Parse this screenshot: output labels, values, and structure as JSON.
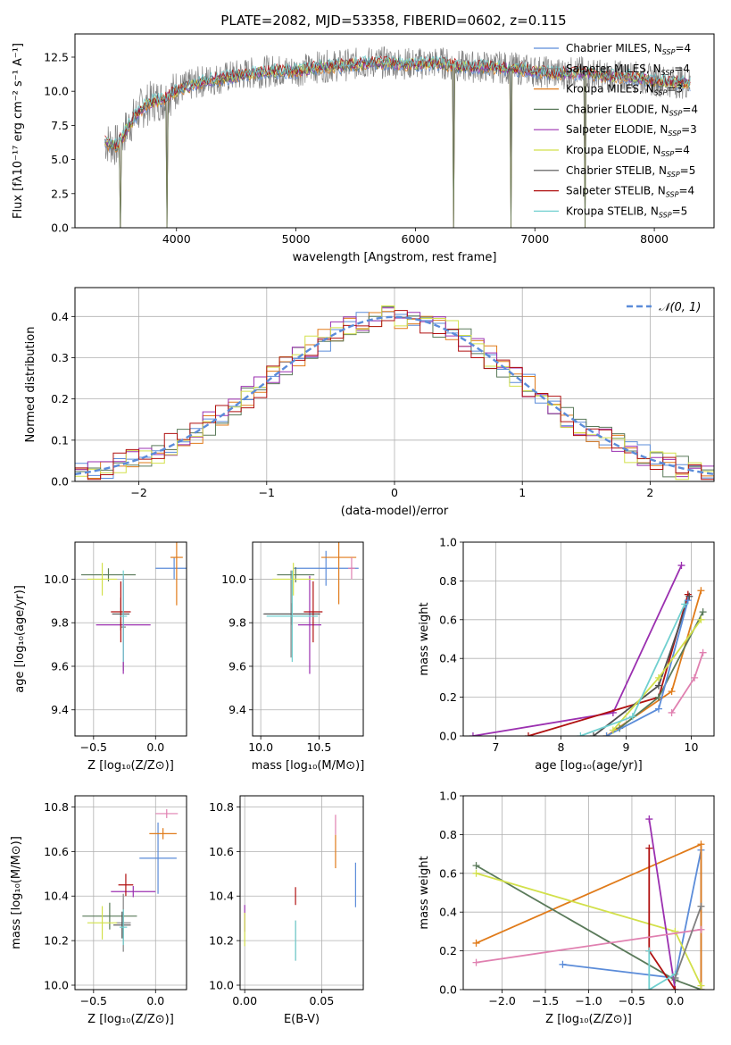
{
  "figure_title": "PLATE=2082, MJD=53358, FIBERID=0602, z=0.115",
  "colors": {
    "chabrier_miles": "#5b8cd9",
    "salpeter_miles": "#808080",
    "kroupa_miles": "#e07b1a",
    "chabrier_elodie": "#5a7a5a",
    "salpeter_elodie": "#9b30b0",
    "kroupa_elodie": "#d2e04a",
    "chabrier_stelib": "#505050",
    "salpeter_stelib": "#b01010",
    "kroupa_stelib": "#70d0d0",
    "pink": "#e080b0",
    "gaussian": "#5b8cd9"
  },
  "chart_data": [
    {
      "type": "line",
      "id": "spectrum",
      "xlabel": "wavelength [Angstrom, rest frame]",
      "ylabel": "Flux [fλ10⁻¹⁷ erg cm⁻² s⁻¹ A⁻¹]",
      "xlim": [
        3150,
        8500
      ],
      "ylim": [
        0,
        14.2
      ],
      "xticks": [
        4000,
        5000,
        6000,
        7000,
        8000
      ],
      "yticks": [
        0.0,
        2.5,
        5.0,
        7.5,
        10.0,
        12.5
      ],
      "legend": [
        "Chabrier MILES, N_SSP=4",
        "Salpeter MILES, N_SSP=4",
        "Kroupa MILES, N_SSP=3",
        "Chabrier ELODIE, N_SSP=4",
        "Salpeter ELODIE, N_SSP=3",
        "Kroupa ELODIE, N_SSP=4",
        "Chabrier STELIB, N_SSP=5",
        "Salpeter STELIB, N_SSP=4",
        "Kroupa STELIB, N_SSP=5"
      ],
      "legend_placement": "right",
      "continuum": [
        [
          3400,
          6.3
        ],
        [
          3500,
          6.0
        ],
        [
          3600,
          7.5
        ],
        [
          3700,
          8.7
        ],
        [
          3800,
          9.3
        ],
        [
          3900,
          9.4
        ],
        [
          4000,
          10.1
        ],
        [
          4200,
          10.7
        ],
        [
          4400,
          11.0
        ],
        [
          4600,
          11.3
        ],
        [
          4800,
          11.5
        ],
        [
          5000,
          11.5
        ],
        [
          5200,
          11.8
        ],
        [
          5400,
          11.9
        ],
        [
          5600,
          12.1
        ],
        [
          5800,
          12.1
        ],
        [
          6000,
          12.0
        ],
        [
          6200,
          12.1
        ],
        [
          6400,
          11.8
        ],
        [
          6600,
          11.8
        ],
        [
          6800,
          11.7
        ],
        [
          7000,
          11.5
        ],
        [
          7200,
          11.3
        ],
        [
          7400,
          11.4
        ],
        [
          7600,
          11.1
        ],
        [
          7800,
          11.1
        ],
        [
          8000,
          10.8
        ],
        [
          8300,
          10.6
        ]
      ],
      "drops": [
        3530,
        3920,
        6320,
        6800,
        7420
      ]
    },
    {
      "type": "bar",
      "id": "residuals",
      "xlabel": "(data-model)/error",
      "ylabel": "Normed distribution",
      "xlim": [
        -2.5,
        2.5
      ],
      "ylim": [
        0,
        0.47
      ],
      "xticks": [
        -2,
        -1,
        0,
        1,
        2
      ],
      "yticks": [
        0.0,
        0.1,
        0.2,
        0.3,
        0.4
      ],
      "legend": [
        "𝒩(0, 1)"
      ],
      "legend_placement": "top-right",
      "bin_edges_start": -2.5,
      "bin_width": 0.1,
      "grid": true
    },
    {
      "type": "scatter",
      "id": "age_vs_Z",
      "xlabel": "Z [log₁₀(Z/Z⊙)]",
      "ylabel": "age  [log₁₀(age/yr)]",
      "xlim": [
        -0.65,
        0.25
      ],
      "ylim": [
        9.28,
        10.17
      ],
      "xticks": [
        -0.5,
        0.0
      ],
      "yticks": [
        9.4,
        9.6,
        9.8,
        10.0
      ],
      "points": [
        {
          "x": 0.15,
          "y": 10.05,
          "xe": 0.15,
          "ye": 0.1,
          "c": "chabrier_miles"
        },
        {
          "x": -0.26,
          "y": 9.78,
          "xe": 0.02,
          "ye": 0.4,
          "c": "salpeter_miles"
        },
        {
          "x": 0.17,
          "y": 10.1,
          "xe": 0.05,
          "ye": 0.44,
          "c": "kroupa_miles"
        },
        {
          "x": -0.38,
          "y": 10.02,
          "xe": 0.22,
          "ye": 0.06,
          "c": "chabrier_elodie"
        },
        {
          "x": -0.26,
          "y": 9.79,
          "xe": 0.22,
          "ye": 0.45,
          "c": "salpeter_elodie"
        },
        {
          "x": -0.43,
          "y": 10.0,
          "xe": 0.12,
          "ye": 0.15,
          "c": "kroupa_elodie"
        },
        {
          "x": -0.28,
          "y": 9.84,
          "xe": 0.07,
          "ye": 0.15,
          "c": "chabrier_stelib"
        },
        {
          "x": -0.28,
          "y": 9.85,
          "xe": 0.08,
          "ye": 0.28,
          "c": "salpeter_stelib"
        },
        {
          "x": -0.26,
          "y": 9.83,
          "xe": 0.03,
          "ye": 0.42,
          "c": "kroupa_stelib"
        }
      ]
    },
    {
      "type": "scatter",
      "id": "age_vs_mass",
      "xlabel": "mass [log₁₀(M/M⊙)]",
      "ylabel": "",
      "xlim": [
        9.93,
        10.88
      ],
      "ylim": [
        9.28,
        10.17
      ],
      "xticks": [
        10.0,
        10.5
      ],
      "yticks": [
        9.4,
        9.6,
        9.8,
        10.0
      ],
      "points": [
        {
          "x": 10.56,
          "y": 10.05,
          "xe": 0.28,
          "ye": 0.16,
          "c": "chabrier_miles"
        },
        {
          "x": 10.26,
          "y": 9.84,
          "xe": 0.24,
          "ye": 0.4,
          "c": "salpeter_miles"
        },
        {
          "x": 10.67,
          "y": 10.1,
          "xe": 0.15,
          "ye": 0.43,
          "c": "kroupa_miles"
        },
        {
          "x": 10.3,
          "y": 10.02,
          "xe": 0.16,
          "ye": 0.07,
          "c": "chabrier_elodie"
        },
        {
          "x": 10.42,
          "y": 9.79,
          "xe": 0.1,
          "ye": 0.45,
          "c": "salpeter_elodie"
        },
        {
          "x": 10.28,
          "y": 10.0,
          "xe": 0.18,
          "ye": 0.15,
          "c": "kroupa_elodie"
        },
        {
          "x": 10.27,
          "y": 9.84,
          "xe": 0.24,
          "ye": 0.1,
          "c": "chabrier_stelib"
        },
        {
          "x": 10.45,
          "y": 9.85,
          "xe": 0.08,
          "ye": 0.28,
          "c": "salpeter_stelib"
        },
        {
          "x": 10.27,
          "y": 9.83,
          "xe": 0.22,
          "ye": 0.42,
          "c": "kroupa_stelib"
        },
        {
          "x": 10.78,
          "y": 10.05,
          "xe": 0.03,
          "ye": 0.1,
          "c": "pink"
        }
      ]
    },
    {
      "type": "line",
      "id": "weight_vs_age",
      "xlabel": "age  [log₁₀(age/yr)]",
      "ylabel": "mass weight",
      "xlim": [
        6.5,
        10.35
      ],
      "ylim": [
        0,
        1.0
      ],
      "xticks": [
        7,
        8,
        9,
        10
      ],
      "yticks": [
        0.0,
        0.2,
        0.4,
        0.6,
        0.8,
        1.0
      ],
      "series": [
        {
          "c": "salpeter_elodie",
          "x": [
            6.65,
            8.8,
            9.85
          ],
          "y": [
            0.0,
            0.12,
            0.88
          ]
        },
        {
          "c": "salpeter_stelib",
          "x": [
            7.5,
            9.5,
            9.95
          ],
          "y": [
            0.0,
            0.2,
            0.73
          ]
        },
        {
          "c": "chabrier_stelib",
          "x": [
            8.5,
            9.5,
            9.97
          ],
          "y": [
            0.0,
            0.26,
            0.72
          ]
        },
        {
          "c": "kroupa_miles",
          "x": [
            8.7,
            9.7,
            10.15
          ],
          "y": [
            0.0,
            0.23,
            0.75
          ]
        },
        {
          "c": "chabrier_elodie",
          "x": [
            8.9,
            9.5,
            10.18
          ],
          "y": [
            0.04,
            0.2,
            0.64
          ]
        },
        {
          "c": "chabrier_miles",
          "x": [
            8.7,
            9.5,
            9.95
          ],
          "y": [
            0.0,
            0.14,
            0.7
          ]
        },
        {
          "c": "kroupa_elodie",
          "x": [
            8.8,
            9.5,
            10.15
          ],
          "y": [
            0.03,
            0.3,
            0.6
          ]
        },
        {
          "c": "kroupa_stelib",
          "x": [
            8.3,
            9.1,
            9.9
          ],
          "y": [
            0.0,
            0.1,
            0.68
          ]
        },
        {
          "c": "pink",
          "x": [
            9.7,
            10.05,
            10.18
          ],
          "y": [
            0.12,
            0.3,
            0.43
          ]
        }
      ]
    },
    {
      "type": "scatter",
      "id": "mass_vs_Z",
      "xlabel": "Z [log₁₀(Z/Z⊙)]",
      "ylabel": "mass [log₁₀(M/M⊙)]",
      "xlim": [
        -0.65,
        0.25
      ],
      "ylim": [
        9.98,
        10.85
      ],
      "xticks": [
        -0.5,
        0.0
      ],
      "yticks": [
        10.0,
        10.2,
        10.4,
        10.6,
        10.8
      ],
      "points": [
        {
          "x": 0.02,
          "y": 10.57,
          "xe": 0.15,
          "ye": 0.32,
          "c": "chabrier_miles"
        },
        {
          "x": -0.26,
          "y": 10.28,
          "xe": 0.06,
          "ye": 0.26,
          "c": "salpeter_miles"
        },
        {
          "x": 0.06,
          "y": 10.68,
          "xe": 0.11,
          "ye": 0.05,
          "c": "kroupa_miles"
        },
        {
          "x": -0.37,
          "y": 10.31,
          "xe": 0.22,
          "ye": 0.12,
          "c": "chabrier_elodie"
        },
        {
          "x": -0.18,
          "y": 10.42,
          "xe": 0.18,
          "ye": 0.05,
          "c": "salpeter_elodie"
        },
        {
          "x": -0.43,
          "y": 10.28,
          "xe": 0.12,
          "ye": 0.15,
          "c": "kroupa_elodie"
        },
        {
          "x": -0.27,
          "y": 10.27,
          "xe": 0.07,
          "ye": 0.12,
          "c": "chabrier_stelib"
        },
        {
          "x": -0.24,
          "y": 10.45,
          "xe": 0.06,
          "ye": 0.1,
          "c": "salpeter_stelib"
        },
        {
          "x": -0.26,
          "y": 10.26,
          "xe": 0.03,
          "ye": 0.16,
          "c": "kroupa_stelib"
        },
        {
          "x": 0.09,
          "y": 10.77,
          "xe": 0.09,
          "ye": 0.04,
          "c": "pink"
        }
      ]
    },
    {
      "type": "scatter",
      "id": "mass_vs_ebv",
      "xlabel": "E(B-V)",
      "ylabel": "",
      "xlim": [
        -0.003,
        0.077
      ],
      "ylim": [
        9.98,
        10.85
      ],
      "xticks": [
        0.0,
        0.05
      ],
      "yticks": [
        10.0,
        10.2,
        10.4,
        10.6,
        10.8
      ],
      "points": [
        {
          "x": 0.072,
          "y": 10.45,
          "xe": 0,
          "ye": 0.2,
          "c": "chabrier_miles"
        },
        {
          "x": 0.033,
          "y": 10.2,
          "xe": 0,
          "ye": 0.18,
          "c": "salpeter_miles"
        },
        {
          "x": 0.059,
          "y": 10.6,
          "xe": 0,
          "ye": 0.15,
          "c": "kroupa_miles"
        },
        {
          "x": 0.0,
          "y": 10.3,
          "xe": 0,
          "ye": 0.12,
          "c": "salpeter_elodie"
        },
        {
          "x": 0.0,
          "y": 10.25,
          "xe": 0,
          "ye": 0.15,
          "c": "kroupa_elodie"
        },
        {
          "x": 0.033,
          "y": 10.4,
          "xe": 0,
          "ye": 0.08,
          "c": "salpeter_stelib"
        },
        {
          "x": 0.033,
          "y": 10.2,
          "xe": 0,
          "ye": 0.18,
          "c": "kroupa_stelib"
        },
        {
          "x": 0.059,
          "y": 10.72,
          "xe": 0,
          "ye": 0.09,
          "c": "pink"
        }
      ]
    },
    {
      "type": "line",
      "id": "weight_vs_Z",
      "xlabel": "Z [log₁₀(Z/Z⊙)]",
      "ylabel": "mass weight",
      "xlim": [
        -2.45,
        0.45
      ],
      "ylim": [
        0,
        1.0
      ],
      "xticks": [
        -2.0,
        -1.5,
        -1.0,
        -0.5,
        0.0
      ],
      "yticks": [
        0.0,
        0.2,
        0.4,
        0.6,
        0.8,
        1.0
      ],
      "series": [
        {
          "c": "chabrier_miles",
          "x": [
            -1.3,
            0.0,
            0.3,
            0.3
          ],
          "y": [
            0.13,
            0.06,
            0.72,
            0.0
          ]
        },
        {
          "c": "kroupa_miles",
          "x": [
            -2.3,
            0.3,
            0.3
          ],
          "y": [
            0.24,
            0.75,
            0.0
          ]
        },
        {
          "c": "chabrier_elodie",
          "x": [
            -2.3,
            0.0,
            0.3
          ],
          "y": [
            0.64,
            0.05,
            0.0
          ]
        },
        {
          "c": "kroupa_elodie",
          "x": [
            -2.3,
            0.0,
            0.3
          ],
          "y": [
            0.6,
            0.3,
            0.02
          ]
        },
        {
          "c": "salpeter_elodie",
          "x": [
            -0.3,
            0.0
          ],
          "y": [
            0.88,
            0.0
          ]
        },
        {
          "c": "salpeter_stelib",
          "x": [
            -0.3,
            -0.3,
            0.0
          ],
          "y": [
            0.73,
            0.2,
            0.0
          ]
        },
        {
          "c": "kroupa_stelib",
          "x": [
            -0.3,
            -0.3,
            0.0
          ],
          "y": [
            0.2,
            0.0,
            0.08
          ]
        },
        {
          "c": "pink",
          "x": [
            -2.3,
            0.3
          ],
          "y": [
            0.14,
            0.31
          ]
        },
        {
          "c": "salpeter_miles",
          "x": [
            0.0,
            0.3
          ],
          "y": [
            0.06,
            0.43
          ]
        }
      ]
    }
  ]
}
